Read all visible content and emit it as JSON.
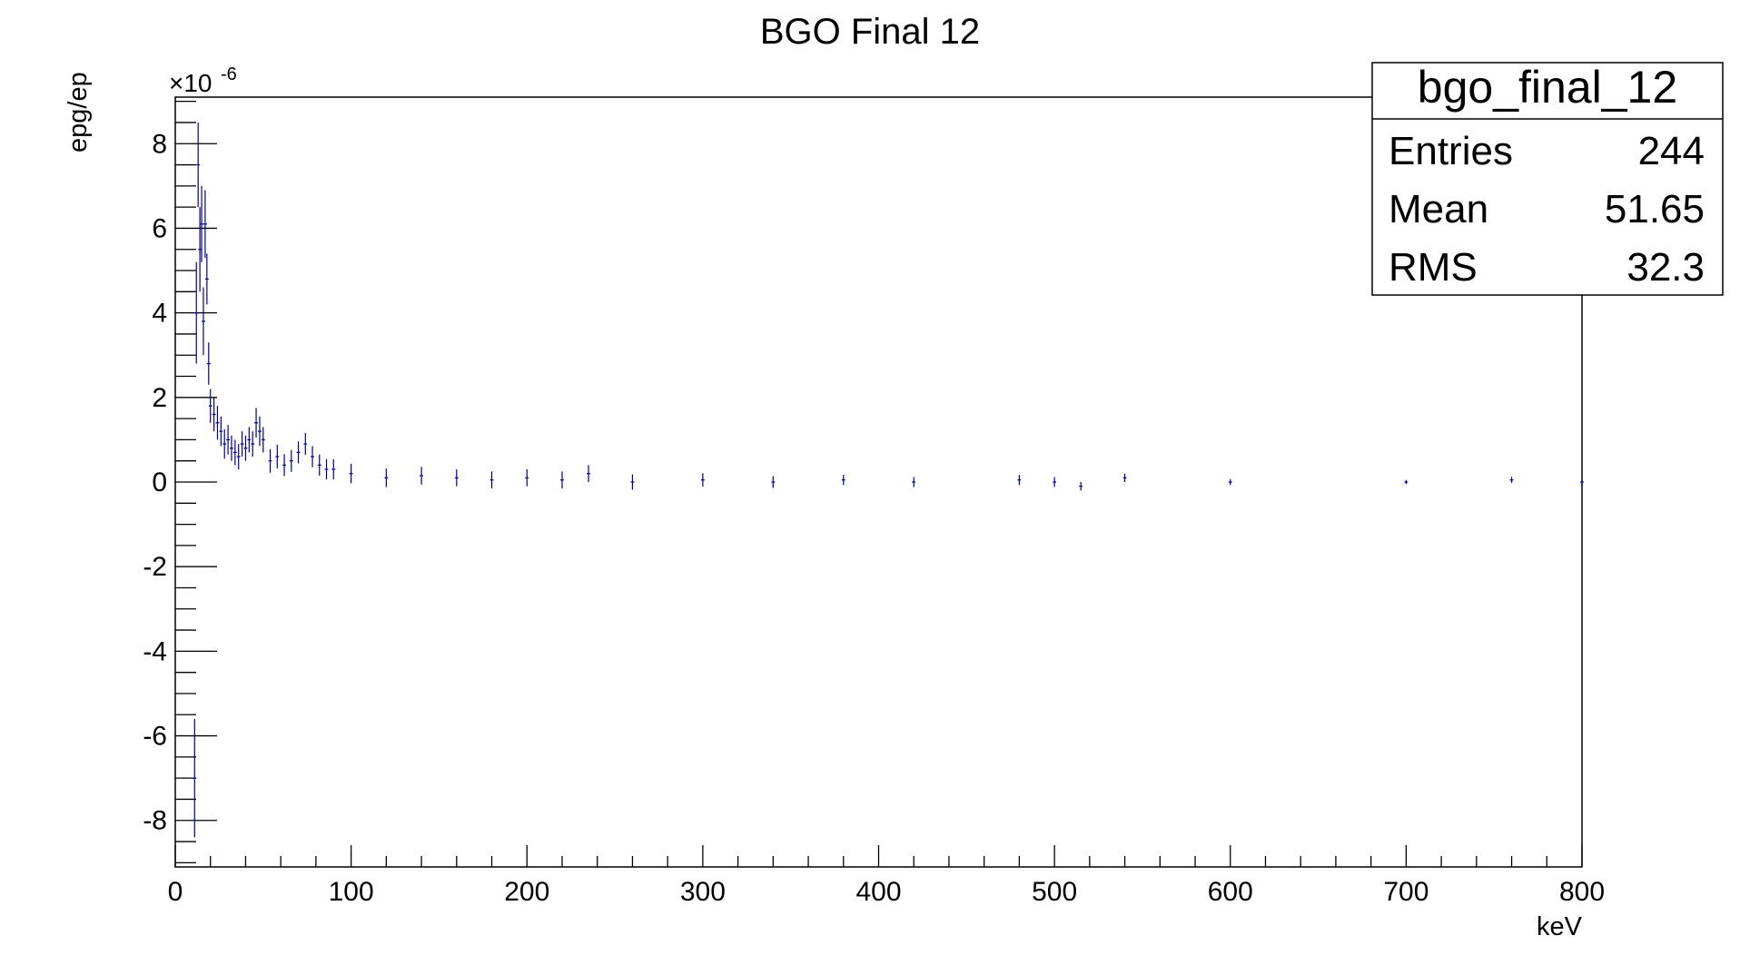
{
  "chart_data": {
    "type": "histogram",
    "title": "BGO Final 12",
    "xlabel": "keV",
    "ylabel": "epg/ep",
    "y_exponent": "-6",
    "xlim": [
      0,
      800
    ],
    "ylim": [
      -9.1,
      9.1
    ],
    "x_ticks": [
      0,
      100,
      200,
      300,
      400,
      500,
      600,
      700,
      800
    ],
    "y_ticks": [
      -8,
      -6,
      -4,
      -2,
      0,
      2,
      4,
      6,
      8
    ],
    "grid": false,
    "series_color": "#00008b",
    "bin_width_kev": 2,
    "series": [
      {
        "x": [
          11,
          12,
          13,
          14,
          15,
          16,
          17,
          18,
          19,
          20,
          22,
          24,
          26,
          28,
          30,
          32,
          34,
          36,
          38,
          40,
          42,
          44,
          46,
          48,
          50,
          54,
          58,
          62,
          66,
          70,
          74,
          78,
          82,
          86,
          90,
          100,
          120,
          140,
          160,
          180,
          200,
          220,
          235,
          260,
          300,
          340,
          380,
          420,
          480,
          500,
          515,
          540,
          600,
          700,
          760,
          800
        ],
        "y": [
          -7.0,
          4.0,
          7.5,
          5.5,
          6.1,
          3.8,
          6.1,
          4.8,
          2.8,
          1.8,
          1.6,
          1.4,
          1.2,
          0.9,
          1.0,
          0.8,
          0.7,
          0.6,
          0.9,
          0.8,
          1.0,
          0.9,
          1.4,
          1.2,
          1.0,
          0.5,
          0.6,
          0.4,
          0.5,
          0.7,
          0.9,
          0.6,
          0.4,
          0.3,
          0.3,
          0.2,
          0.1,
          0.15,
          0.1,
          0.05,
          0.1,
          0.05,
          0.2,
          0.0,
          0.05,
          0.0,
          0.05,
          0.0,
          0.05,
          0.0,
          -0.1,
          0.1,
          0.0,
          0.0,
          0.05,
          0.0
        ],
        "err": [
          1.4,
          1.2,
          1.0,
          1.0,
          0.9,
          0.8,
          0.8,
          0.6,
          0.5,
          0.4,
          0.4,
          0.4,
          0.35,
          0.35,
          0.35,
          0.3,
          0.3,
          0.3,
          0.3,
          0.3,
          0.3,
          0.3,
          0.35,
          0.35,
          0.3,
          0.28,
          0.28,
          0.26,
          0.26,
          0.26,
          0.26,
          0.25,
          0.25,
          0.24,
          0.24,
          0.23,
          0.22,
          0.21,
          0.2,
          0.2,
          0.2,
          0.2,
          0.2,
          0.18,
          0.16,
          0.14,
          0.12,
          0.12,
          0.12,
          0.12,
          0.1,
          0.1,
          0.07,
          0.05,
          0.07,
          0.05
        ]
      }
    ]
  },
  "stats_box": {
    "name": "bgo_final_12",
    "rows": [
      {
        "label": "Entries",
        "value": "244"
      },
      {
        "label": "Mean",
        "value": "51.65"
      },
      {
        "label": "RMS",
        "value": "32.3"
      }
    ]
  }
}
